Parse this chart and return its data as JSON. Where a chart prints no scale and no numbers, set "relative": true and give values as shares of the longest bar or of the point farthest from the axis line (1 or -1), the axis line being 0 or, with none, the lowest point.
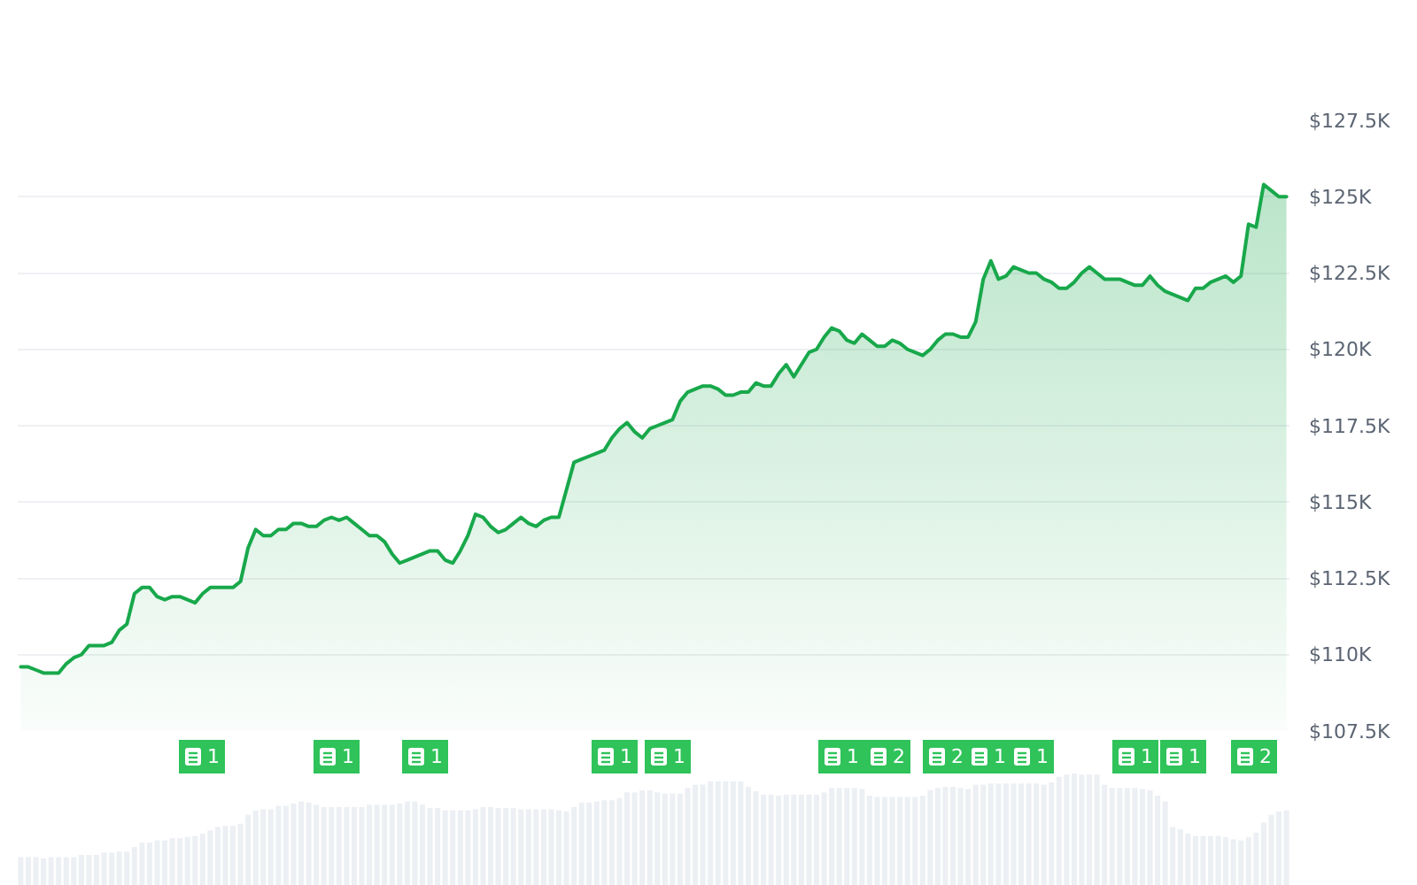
{
  "chart_data": [
    {
      "type": "area",
      "color": "#18a84b",
      "categories": [
        null,
        null,
        null,
        null,
        null,
        null,
        null,
        null,
        null,
        null,
        null,
        null,
        null,
        null,
        null,
        null,
        null,
        null,
        null,
        null,
        null,
        null,
        null,
        null,
        null,
        null,
        null,
        null,
        null,
        null,
        null,
        null,
        null,
        null,
        null,
        null,
        null,
        null,
        null,
        null,
        null,
        null,
        null,
        null,
        null,
        null,
        null,
        null,
        null,
        null,
        null,
        null,
        null,
        null,
        null,
        null,
        null,
        null,
        null,
        null,
        null,
        null,
        null,
        null,
        null,
        null,
        null,
        null,
        null,
        null,
        null,
        null,
        null,
        null,
        null,
        null,
        null,
        null,
        null,
        null,
        null,
        null,
        null,
        null,
        null,
        null,
        null,
        null,
        null,
        null,
        null,
        null,
        null,
        null,
        null,
        null,
        null,
        null,
        null,
        null,
        null,
        null,
        null,
        null,
        null,
        null,
        null,
        null,
        null,
        null,
        null,
        null,
        null,
        null,
        null,
        null,
        null,
        null,
        null,
        null,
        null,
        null,
        null,
        null,
        null,
        null,
        null,
        null,
        null,
        null,
        null,
        null,
        null,
        null,
        null,
        null,
        null,
        null,
        null,
        null,
        null,
        null,
        null,
        null,
        null,
        null,
        null,
        null,
        null,
        null,
        null,
        null,
        null,
        null,
        null,
        null,
        null,
        null,
        null,
        null,
        null,
        null,
        null,
        null,
        null,
        null,
        null,
        null
      ],
      "values": [
        109.6,
        109.6,
        109.5,
        109.4,
        109.4,
        109.4,
        109.7,
        109.9,
        110.0,
        110.3,
        110.3,
        110.3,
        110.4,
        110.8,
        111.0,
        112.0,
        112.2,
        112.2,
        111.9,
        111.8,
        111.9,
        111.9,
        111.8,
        111.7,
        112.0,
        112.2,
        112.2,
        112.2,
        112.2,
        112.4,
        113.5,
        114.1,
        113.9,
        113.9,
        114.1,
        114.1,
        114.3,
        114.3,
        114.2,
        114.2,
        114.4,
        114.5,
        114.4,
        114.5,
        114.3,
        114.1,
        113.9,
        113.9,
        113.7,
        113.3,
        113.0,
        113.1,
        113.2,
        113.3,
        113.4,
        113.4,
        113.1,
        113.0,
        113.4,
        113.9,
        114.6,
        114.5,
        114.2,
        114.0,
        114.1,
        114.3,
        114.5,
        114.3,
        114.2,
        114.4,
        114.5,
        114.5,
        115.4,
        116.3,
        116.4,
        116.5,
        116.6,
        116.7,
        117.1,
        117.4,
        117.6,
        117.3,
        117.1,
        117.4,
        117.5,
        117.6,
        117.7,
        118.3,
        118.6,
        118.7,
        118.8,
        118.8,
        118.7,
        118.5,
        118.5,
        118.6,
        118.6,
        118.9,
        118.8,
        118.8,
        119.2,
        119.5,
        119.1,
        119.5,
        119.9,
        120.0,
        120.4,
        120.7,
        120.6,
        120.3,
        120.2,
        120.5,
        120.3,
        120.1,
        120.1,
        120.3,
        120.2,
        120.0,
        119.9,
        119.8,
        120.0,
        120.3,
        120.5,
        120.5,
        120.4,
        120.4,
        120.9,
        122.3,
        122.9,
        122.3,
        122.4,
        122.7,
        122.6,
        122.5,
        122.5,
        122.3,
        122.2,
        122.0,
        122.0,
        122.2,
        122.5,
        122.7,
        122.5,
        122.3,
        122.3,
        122.3,
        122.2,
        122.1,
        122.1,
        122.4,
        122.1,
        121.9,
        121.8,
        121.7,
        121.6,
        122.0,
        122.0,
        122.2,
        122.3,
        122.4,
        122.2,
        122.4,
        124.1,
        124.0,
        125.4,
        125.2,
        125.0,
        125.0
      ],
      "ylim": [
        107.5,
        127.5
      ],
      "yticks": [
        {
          "value": 107.5,
          "label": "$107.5K"
        },
        {
          "value": 110,
          "label": "$110K"
        },
        {
          "value": 112.5,
          "label": "$112.5K"
        },
        {
          "value": 115,
          "label": "$115K"
        },
        {
          "value": 117.5,
          "label": "$117.5K"
        },
        {
          "value": 120,
          "label": "$120K"
        },
        {
          "value": 122.5,
          "label": "$122.5K"
        },
        {
          "value": 125,
          "label": "$125K"
        },
        {
          "value": 127.5,
          "label": "$127.5K"
        }
      ],
      "grid": "y",
      "tick_labels": "y",
      "annotations": [
        "1",
        "1",
        "1",
        "1",
        "1",
        "1",
        "2",
        "2",
        "1",
        "1",
        "1",
        "1",
        "2"
      ]
    },
    {
      "type": "bar",
      "relative": true,
      "color": "#eceff3",
      "tick_labels": false,
      "categories": [
        null,
        null,
        null,
        null,
        null,
        null,
        null,
        null,
        null,
        null,
        null,
        null,
        null,
        null,
        null,
        null,
        null,
        null,
        null,
        null,
        null,
        null,
        null,
        null,
        null,
        null,
        null,
        null,
        null,
        null,
        null,
        null,
        null,
        null,
        null,
        null,
        null,
        null,
        null,
        null,
        null,
        null,
        null,
        null,
        null,
        null,
        null,
        null,
        null,
        null,
        null,
        null,
        null,
        null,
        null,
        null,
        null,
        null,
        null,
        null,
        null,
        null,
        null,
        null,
        null,
        null,
        null,
        null,
        null,
        null,
        null,
        null,
        null,
        null,
        null,
        null,
        null,
        null,
        null,
        null,
        null,
        null,
        null,
        null,
        null,
        null,
        null,
        null,
        null,
        null,
        null,
        null,
        null,
        null,
        null,
        null,
        null,
        null,
        null,
        null,
        null,
        null,
        null,
        null,
        null,
        null,
        null,
        null,
        null,
        null,
        null,
        null,
        null,
        null,
        null,
        null,
        null,
        null,
        null,
        null,
        null,
        null,
        null,
        null,
        null,
        null,
        null,
        null,
        null,
        null,
        null,
        null,
        null,
        null,
        null,
        null,
        null,
        null,
        null,
        null,
        null,
        null,
        null,
        null,
        null,
        null,
        null,
        null,
        null,
        null,
        null,
        null,
        null,
        null,
        null,
        null,
        null,
        null,
        null,
        null,
        null,
        null,
        null,
        null,
        null,
        null,
        null,
        null
      ],
      "values": [
        0.25,
        0.25,
        0.25,
        0.24,
        0.25,
        0.25,
        0.25,
        0.25,
        0.27,
        0.27,
        0.27,
        0.29,
        0.29,
        0.3,
        0.3,
        0.34,
        0.38,
        0.38,
        0.4,
        0.4,
        0.42,
        0.42,
        0.43,
        0.44,
        0.46,
        0.49,
        0.52,
        0.53,
        0.53,
        0.55,
        0.63,
        0.67,
        0.68,
        0.68,
        0.71,
        0.71,
        0.73,
        0.75,
        0.74,
        0.72,
        0.7,
        0.7,
        0.7,
        0.7,
        0.7,
        0.7,
        0.72,
        0.72,
        0.72,
        0.72,
        0.73,
        0.75,
        0.75,
        0.72,
        0.69,
        0.69,
        0.67,
        0.67,
        0.67,
        0.67,
        0.68,
        0.7,
        0.7,
        0.69,
        0.69,
        0.69,
        0.68,
        0.68,
        0.68,
        0.68,
        0.68,
        0.67,
        0.66,
        0.7,
        0.74,
        0.74,
        0.75,
        0.76,
        0.76,
        0.78,
        0.83,
        0.83,
        0.85,
        0.85,
        0.83,
        0.82,
        0.82,
        0.82,
        0.87,
        0.9,
        0.9,
        0.93,
        0.93,
        0.93,
        0.93,
        0.93,
        0.88,
        0.84,
        0.81,
        0.81,
        0.8,
        0.81,
        0.81,
        0.81,
        0.81,
        0.81,
        0.83,
        0.87,
        0.87,
        0.87,
        0.87,
        0.86,
        0.8,
        0.79,
        0.79,
        0.79,
        0.79,
        0.79,
        0.79,
        0.8,
        0.85,
        0.87,
        0.88,
        0.88,
        0.87,
        0.86,
        0.9,
        0.9,
        0.91,
        0.91,
        0.91,
        0.91,
        0.91,
        0.91,
        0.91,
        0.9,
        0.92,
        0.97,
        0.99,
        1.0,
        0.99,
        0.99,
        0.99,
        0.9,
        0.87,
        0.87,
        0.87,
        0.87,
        0.86,
        0.85,
        0.8,
        0.75,
        0.52,
        0.5,
        0.46,
        0.44,
        0.44,
        0.44,
        0.44,
        0.43,
        0.41,
        0.4,
        0.43,
        0.47,
        0.56,
        0.63,
        0.66,
        0.67
      ]
    }
  ]
}
